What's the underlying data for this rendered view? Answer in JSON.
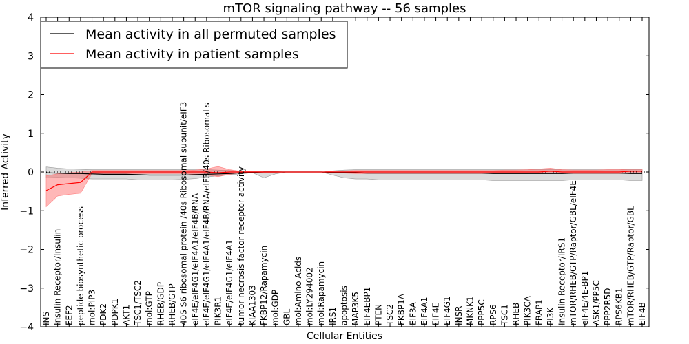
{
  "chart_data": {
    "type": "line",
    "title": "mTOR signaling pathway -- 56 samples",
    "xlabel": "Cellular Entities",
    "ylabel": "Inferred Activity",
    "ylim": [
      -4,
      4
    ],
    "yticks": [
      "4",
      "3",
      "2",
      "1",
      "0",
      "−1",
      "−2",
      "−3",
      "−4"
    ],
    "grid": false,
    "legend_position": "top-left",
    "categories": [
      "INS",
      "Insulin Receptor/Insulin",
      "EEF2",
      "peptide biosynthetic process",
      "mol:PIP3",
      "PDK2",
      "PDPK1",
      "AKT1",
      "TSC1/TSC2",
      "mol:GTP",
      "RHEB/GDP",
      "RHEB/GTP",
      "40S S6 ribosomal protein /40s Ribosomal subunit/eIF3",
      "eIF4E/eIF4G1/eIF4A1/eIF4B/RNA",
      "eIF4E/eIF4G1/eIF4A1/eIF4B/RNA/eIF3/40s Ribosomal s",
      "PIK3R1",
      "eIF4E/eIF4G1/eIF4A1",
      "tumor necrosis factor receptor activity",
      "KIAA1303",
      "FKBP12/Rapamycin",
      "mol:GDP",
      "GBL",
      "mol:Amino Acids",
      "mol:LY294002",
      "mol:Rapamycin",
      "IRS1",
      "apoptosis",
      "MAP3K5",
      "EIF4EBP1",
      "PTEN",
      "TSC2",
      "FKBP1A",
      "EIF3A",
      "EIF4A1",
      "EIF4E",
      "EIF4G1",
      "INSR",
      "MKNK1",
      "PPP5C",
      "RPS6",
      "TSC1",
      "RHEB",
      "PIK3CA",
      "FRAP1",
      "PI3K",
      "Insulin Receptor/IRS1",
      "mTOR/RHEB/GTP/Raptor/GBL/eIF4E",
      "eIF4E/4E-BP1",
      "ASK1/PP5C",
      "PPP2R5D",
      "RPS6KB1",
      "mTOR/RHEB/GTP/Raptor/GBL",
      "EIF4B"
    ],
    "series": [
      {
        "name": "Mean activity in all permuted samples",
        "color": "#000000",
        "values": [
          -0.02,
          -0.03,
          -0.04,
          -0.04,
          -0.05,
          -0.06,
          -0.06,
          -0.06,
          -0.07,
          -0.08,
          -0.08,
          -0.08,
          -0.08,
          -0.07,
          -0.06,
          -0.05,
          -0.04,
          -0.02,
          -0.01,
          0.0,
          0.0,
          0.0,
          0.0,
          0.0,
          0.0,
          -0.01,
          -0.02,
          -0.02,
          -0.03,
          -0.03,
          -0.03,
          -0.03,
          -0.03,
          -0.03,
          -0.03,
          -0.03,
          -0.03,
          -0.03,
          -0.03,
          -0.04,
          -0.04,
          -0.04,
          -0.04,
          -0.04,
          -0.04,
          -0.04,
          -0.03,
          -0.03,
          -0.03,
          -0.03,
          -0.03,
          -0.04,
          -0.04
        ],
        "band_upper": [
          0.13,
          0.1,
          0.08,
          0.07,
          0.06,
          0.06,
          0.06,
          0.06,
          0.06,
          0.06,
          0.06,
          0.06,
          0.06,
          0.06,
          0.06,
          0.05,
          0.04,
          0.02,
          0.01,
          0.01,
          0.01,
          0.0,
          0.0,
          0.0,
          0.0,
          0.03,
          0.05,
          0.06,
          0.06,
          0.06,
          0.06,
          0.06,
          0.06,
          0.06,
          0.06,
          0.06,
          0.06,
          0.06,
          0.06,
          0.06,
          0.06,
          0.06,
          0.06,
          0.06,
          0.06,
          0.06,
          0.06,
          0.06,
          0.06,
          0.06,
          0.06,
          0.06,
          0.06
        ],
        "band_lower": [
          -0.15,
          -0.14,
          -0.15,
          -0.16,
          -0.18,
          -0.18,
          -0.18,
          -0.18,
          -0.2,
          -0.2,
          -0.2,
          -0.2,
          -0.19,
          -0.17,
          -0.13,
          -0.1,
          -0.07,
          -0.05,
          -0.02,
          -0.15,
          -0.05,
          0.0,
          0.0,
          0.0,
          0.0,
          -0.08,
          -0.15,
          -0.18,
          -0.18,
          -0.2,
          -0.2,
          -0.2,
          -0.2,
          -0.2,
          -0.2,
          -0.2,
          -0.2,
          -0.2,
          -0.2,
          -0.22,
          -0.22,
          -0.22,
          -0.22,
          -0.22,
          -0.22,
          -0.22,
          -0.2,
          -0.2,
          -0.2,
          -0.2,
          -0.2,
          -0.22,
          -0.22
        ]
      },
      {
        "name": "Mean activity in patient samples",
        "color": "#ff0000",
        "values": [
          -0.48,
          -0.33,
          -0.3,
          -0.27,
          0.0,
          0.0,
          0.0,
          0.0,
          0.0,
          0.0,
          0.0,
          0.0,
          0.0,
          0.0,
          0.0,
          -0.02,
          0.0,
          0.0,
          0.0,
          0.0,
          0.0,
          0.0,
          0.0,
          0.0,
          0.0,
          0.0,
          0.0,
          0.0,
          0.0,
          0.0,
          0.0,
          0.0,
          0.0,
          0.0,
          0.0,
          0.0,
          0.0,
          0.0,
          0.0,
          0.0,
          0.0,
          0.0,
          0.0,
          0.0,
          0.02,
          0.0,
          0.0,
          0.0,
          0.0,
          0.0,
          0.0,
          0.02,
          0.02
        ],
        "band_upper": [
          -0.1,
          -0.05,
          -0.02,
          0.0,
          0.04,
          0.04,
          0.04,
          0.04,
          0.04,
          0.04,
          0.04,
          0.04,
          0.04,
          0.05,
          0.08,
          0.14,
          0.06,
          0.02,
          0.01,
          0.01,
          0.01,
          0.0,
          0.0,
          0.0,
          0.0,
          0.02,
          0.03,
          0.04,
          0.04,
          0.04,
          0.04,
          0.04,
          0.04,
          0.04,
          0.04,
          0.04,
          0.04,
          0.04,
          0.04,
          0.04,
          0.05,
          0.05,
          0.06,
          0.08,
          0.1,
          0.06,
          0.05,
          0.05,
          0.05,
          0.06,
          0.06,
          0.08,
          0.08
        ],
        "band_lower": [
          -0.9,
          -0.62,
          -0.58,
          -0.55,
          -0.04,
          -0.04,
          -0.04,
          -0.04,
          -0.04,
          -0.04,
          -0.04,
          -0.04,
          -0.04,
          -0.06,
          -0.08,
          -0.12,
          -0.06,
          -0.02,
          -0.01,
          -0.01,
          -0.01,
          0.0,
          0.0,
          0.0,
          0.0,
          -0.02,
          -0.03,
          -0.04,
          -0.04,
          -0.04,
          -0.04,
          -0.04,
          -0.04,
          -0.04,
          -0.04,
          -0.04,
          -0.04,
          -0.04,
          -0.04,
          -0.04,
          -0.04,
          -0.04,
          -0.04,
          -0.02,
          -0.02,
          -0.04,
          -0.04,
          -0.04,
          -0.04,
          -0.04,
          -0.04,
          -0.03,
          -0.03
        ]
      }
    ]
  }
}
